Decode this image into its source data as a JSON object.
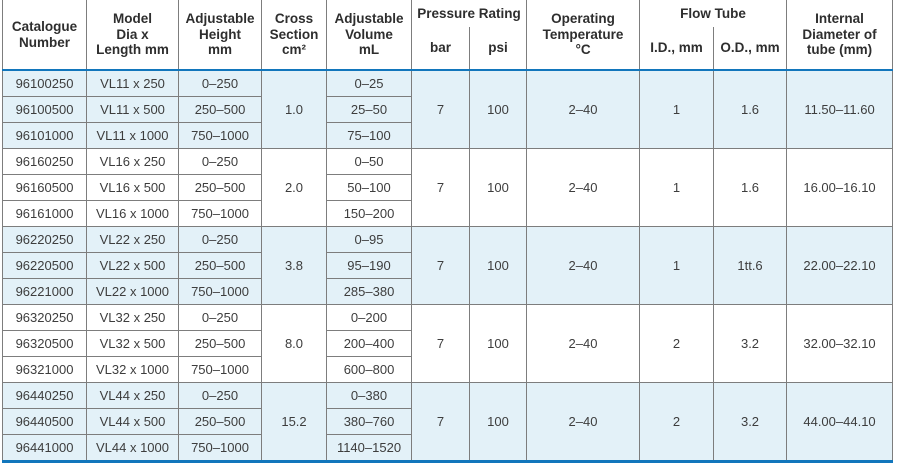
{
  "colors": {
    "accent_blue": "#1276bc",
    "row_alt_blue": "#e3f1f8",
    "border_gray": "#7d7d7d"
  },
  "header": {
    "catalogue": "Catalogue\nNumber",
    "model": "Model\nDia x\nLength mm",
    "height": "Adjustable\nHeight\nmm",
    "cross": "Cross\nSection\ncm²",
    "volume": "Adjustable\nVolume\nmL",
    "pressure_rating": "Pressure Rating",
    "bar": "bar",
    "psi": "psi",
    "temperature": "Operating\nTemperature\n°C",
    "flow_tube": "Flow Tube",
    "id": "I.D., mm",
    "od": "O.D., mm",
    "internal": "Internal\nDiameter of\ntube (mm)"
  },
  "groups": [
    {
      "rows": [
        {
          "cat": "96100250",
          "model": "VL11 x 250",
          "height": "0–250",
          "volume": "0–25"
        },
        {
          "cat": "96100500",
          "model": "VL11 x 500",
          "height": "250–500",
          "volume": "25–50"
        },
        {
          "cat": "96101000",
          "model": "VL11 x 1000",
          "height": "750–1000",
          "volume": "75–100"
        }
      ],
      "cross": "1.0",
      "bar": "7",
      "psi": "100",
      "temp": "2–40",
      "id": "1",
      "od": "1.6",
      "internal": "11.50–11.60"
    },
    {
      "rows": [
        {
          "cat": "96160250",
          "model": "VL16 x 250",
          "height": "0–250",
          "volume": "0–50"
        },
        {
          "cat": "96160500",
          "model": "VL16 x 500",
          "height": "250–500",
          "volume": "50–100"
        },
        {
          "cat": "96161000",
          "model": "VL16 x 1000",
          "height": "750–1000",
          "volume": "150–200"
        }
      ],
      "cross": "2.0",
      "bar": "7",
      "psi": "100",
      "temp": "2–40",
      "id": "1",
      "od": "1.6",
      "internal": "16.00–16.10"
    },
    {
      "rows": [
        {
          "cat": "96220250",
          "model": "VL22 x 250",
          "height": "0–250",
          "volume": "0–95"
        },
        {
          "cat": "96220500",
          "model": "VL22 x 500",
          "height": "250–500",
          "volume": "95–190"
        },
        {
          "cat": "96221000",
          "model": "VL22 x 1000",
          "height": "750–1000",
          "volume": "285–380"
        }
      ],
      "cross": "3.8",
      "bar": "7",
      "psi": "100",
      "temp": "2–40",
      "id": "1",
      "od": "1tt.6",
      "internal": "22.00–22.10"
    },
    {
      "rows": [
        {
          "cat": "96320250",
          "model": "VL32 x 250",
          "height": "0–250",
          "volume": "0–200"
        },
        {
          "cat": "96320500",
          "model": "VL32 x 500",
          "height": "250–500",
          "volume": "200–400"
        },
        {
          "cat": "96321000",
          "model": "VL32 x 1000",
          "height": "750–1000",
          "volume": "600–800"
        }
      ],
      "cross": "8.0",
      "bar": "7",
      "psi": "100",
      "temp": "2–40",
      "id": "2",
      "od": "3.2",
      "internal": "32.00–32.10"
    },
    {
      "rows": [
        {
          "cat": "96440250",
          "model": "VL44 x 250",
          "height": "0–250",
          "volume": "0–380"
        },
        {
          "cat": "96440500",
          "model": "VL44 x 500",
          "height": "250–500",
          "volume": "380–760"
        },
        {
          "cat": "96441000",
          "model": "VL44 x 1000",
          "height": "750–1000",
          "volume": "1140–1520"
        }
      ],
      "cross": "15.2",
      "bar": "7",
      "psi": "100",
      "temp": "2–40",
      "id": "2",
      "od": "3.2",
      "internal": "44.00–44.10"
    }
  ]
}
